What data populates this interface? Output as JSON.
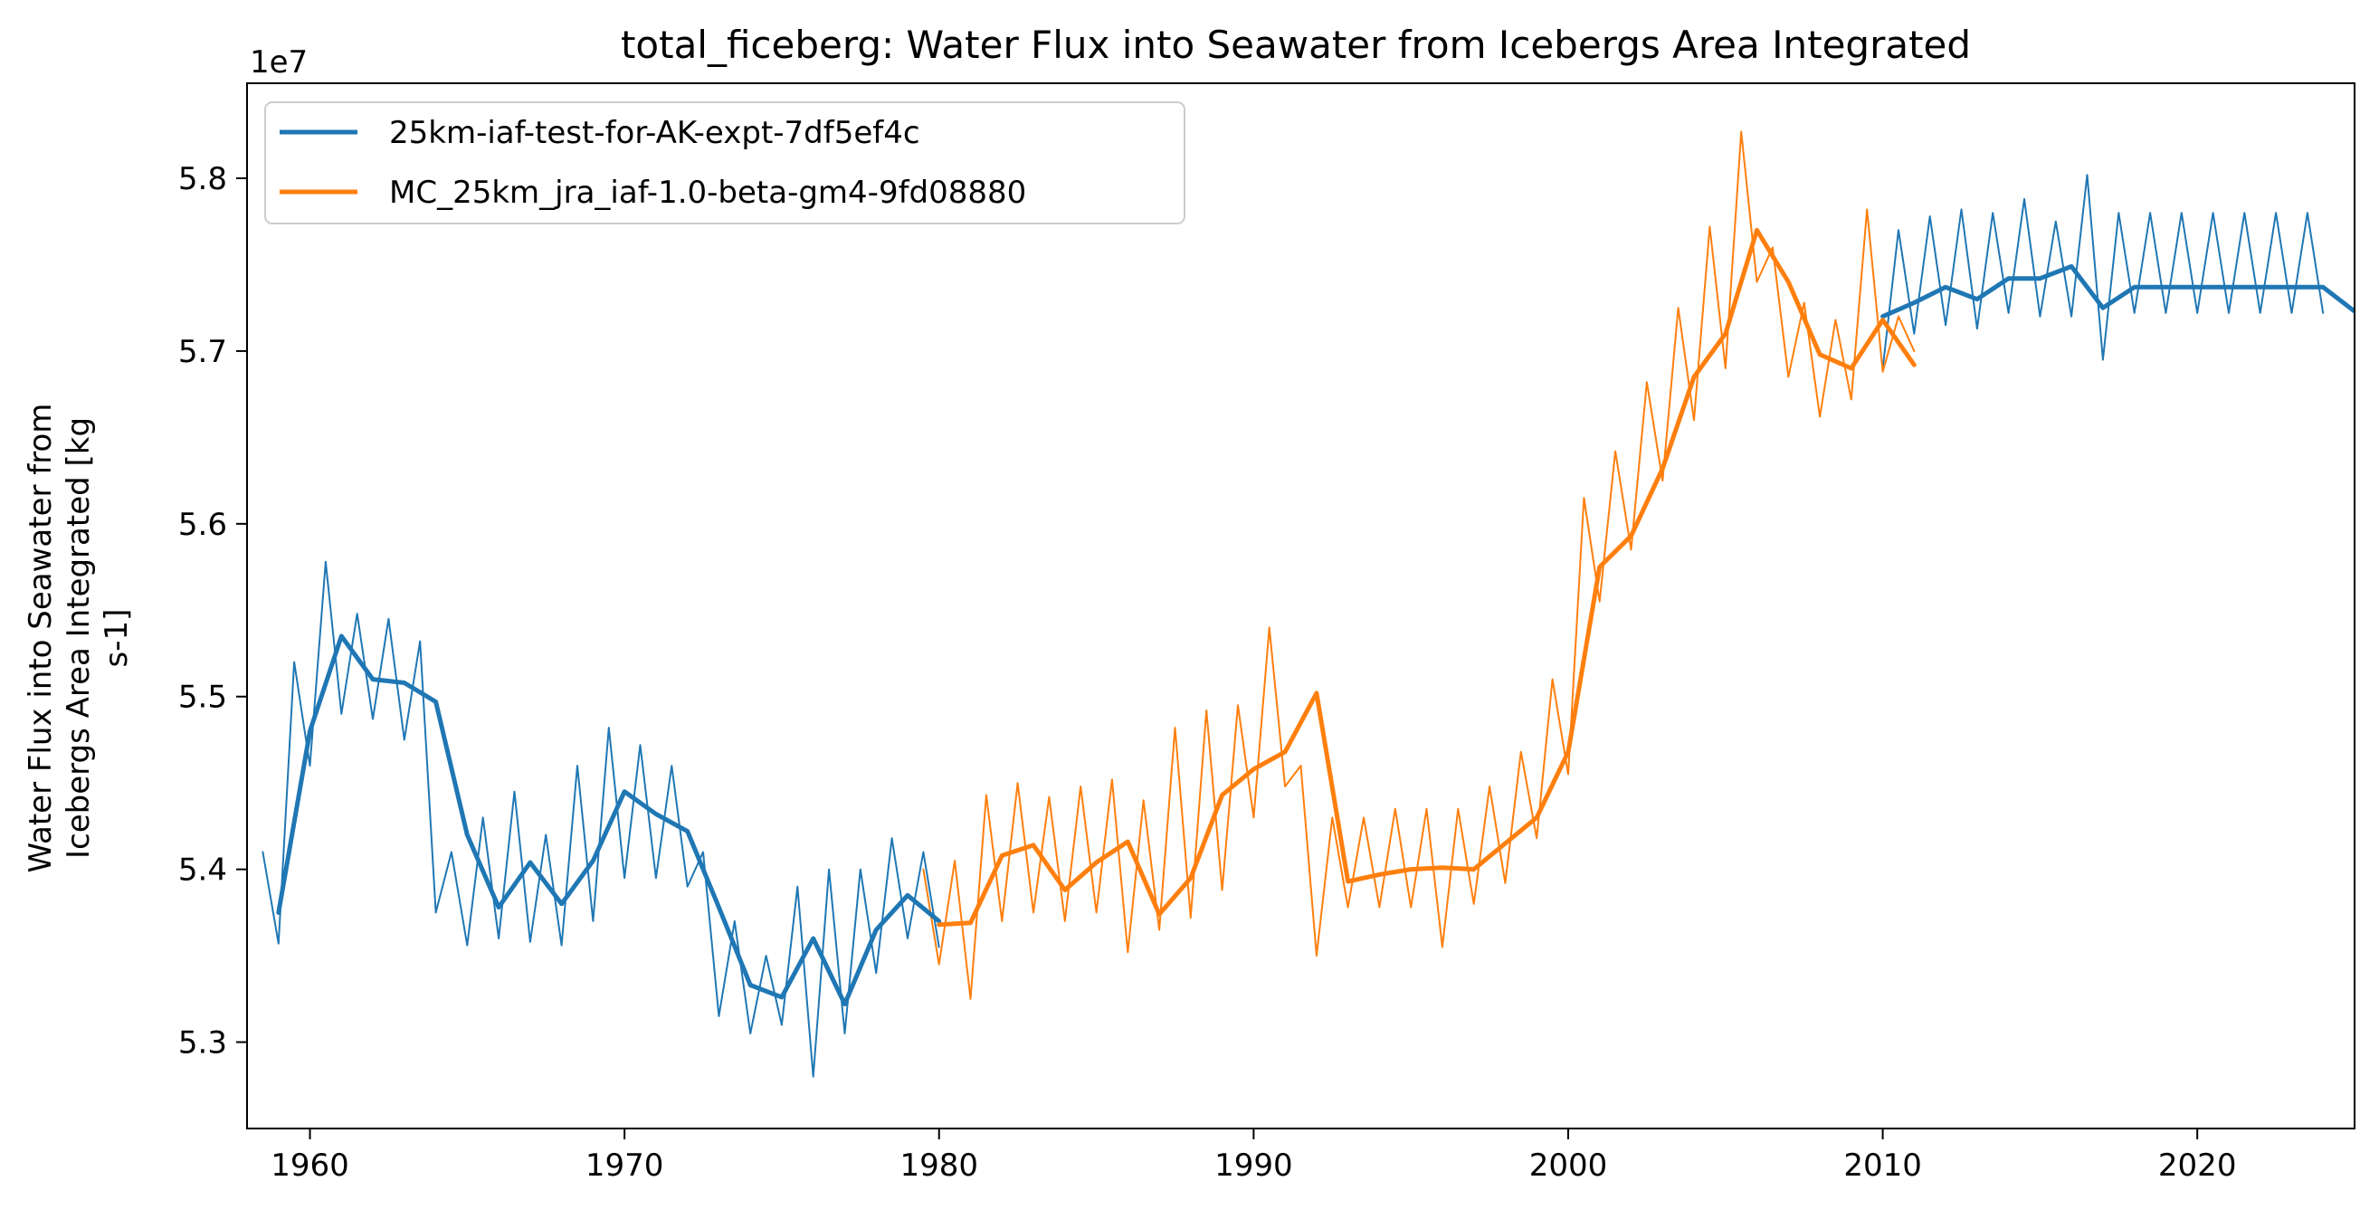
{
  "chart_data": {
    "type": "line",
    "title": "total_ficeberg: Water Flux into Seawater from Icebergs Area Integrated",
    "ylabel_lines": [
      "Water Flux into Seawater from",
      "Icebergs Area Integrated [kg",
      "s-1]"
    ],
    "xlabel": "",
    "y_multiplier": "1e7",
    "xlim": [
      1958,
      2025
    ],
    "ylim": [
      5.25,
      5.855
    ],
    "x_ticks": [
      1960,
      1970,
      1980,
      1990,
      2000,
      2010,
      2020
    ],
    "y_ticks": [
      5.3,
      5.4,
      5.5,
      5.6,
      5.7,
      5.8
    ],
    "y_tick_labels": [
      "5.3",
      "5.4",
      "5.5",
      "5.6",
      "5.7",
      "5.8"
    ],
    "legend_position": "top-left",
    "series": [
      {
        "name": "25km-iaf-test-for-AK-expt-7df5ef4c",
        "color": "#1f77b4",
        "annual": {
          "x": [
            1959,
            1960,
            1961,
            1962,
            1963,
            1964,
            1965,
            1966,
            1967,
            1968,
            1969,
            1970,
            1971,
            1972,
            1973,
            1974,
            1975,
            1976,
            1977,
            1978,
            1979,
            1980
          ],
          "y": [
            5.375,
            5.48,
            5.535,
            5.51,
            5.508,
            5.497,
            5.42,
            5.378,
            5.404,
            5.38,
            5.405,
            5.445,
            5.432,
            5.422,
            5.378,
            5.333,
            5.326,
            5.36,
            5.322,
            5.365,
            5.385,
            5.37
          ]
        },
        "annual_segment2": {
          "x": [
            2010,
            2011,
            2012,
            2013,
            2014,
            2015,
            2016,
            2017,
            2018,
            2019,
            2020,
            2021,
            2022,
            2023,
            2024,
            2025
          ],
          "y": [
            5.72,
            5.728,
            5.737,
            5.73,
            5.742,
            5.742,
            5.749,
            5.725,
            5.737,
            5.737,
            5.737,
            5.737,
            5.737,
            5.737,
            5.737,
            5.723
          ]
        },
        "monthly_peaks": {
          "x": [
            1958.5,
            1959.5,
            1960.5,
            1961.5,
            1962.5,
            1963.5,
            1964.5,
            1965.5,
            1966.5,
            1967.5,
            1968.5,
            1969.5,
            1970.5,
            1971.5,
            1972.5,
            1973.5,
            1974.5,
            1975.5,
            1976.5,
            1977.5,
            1978.5,
            1979.5
          ],
          "y": [
            5.41,
            5.52,
            5.578,
            5.548,
            5.545,
            5.532,
            5.41,
            5.43,
            5.445,
            5.42,
            5.46,
            5.482,
            5.472,
            5.46,
            5.41,
            5.37,
            5.35,
            5.39,
            5.4,
            5.4,
            5.418,
            5.41
          ]
        },
        "monthly_troughs": {
          "x": [
            1959,
            1960,
            1961,
            1962,
            1963,
            1964,
            1965,
            1966,
            1967,
            1968,
            1969,
            1970,
            1971,
            1972,
            1973,
            1974,
            1975,
            1976,
            1977,
            1978,
            1979,
            1980
          ],
          "y": [
            5.357,
            5.46,
            5.49,
            5.487,
            5.475,
            5.375,
            5.356,
            5.36,
            5.358,
            5.356,
            5.37,
            5.395,
            5.395,
            5.39,
            5.315,
            5.305,
            5.31,
            5.28,
            5.305,
            5.34,
            5.36,
            5.355
          ]
        },
        "monthly2_peaks": {
          "x": [
            2010.5,
            2011.5,
            2012.5,
            2013.5,
            2014.5,
            2015.5,
            2016.5,
            2017.5,
            2018.5,
            2019.5,
            2020.5,
            2021.5,
            2022.5,
            2023.5
          ],
          "y": [
            5.77,
            5.778,
            5.782,
            5.78,
            5.788,
            5.775,
            5.802,
            5.78,
            5.78,
            5.78,
            5.78,
            5.78,
            5.78,
            5.78
          ]
        },
        "monthly2_troughs": {
          "x": [
            2010,
            2011,
            2012,
            2013,
            2014,
            2015,
            2016,
            2017,
            2018,
            2019,
            2020,
            2021,
            2022,
            2023,
            2024
          ],
          "y": [
            5.69,
            5.71,
            5.715,
            5.713,
            5.722,
            5.72,
            5.72,
            5.695,
            5.722,
            5.722,
            5.722,
            5.722,
            5.722,
            5.722,
            5.722
          ]
        }
      },
      {
        "name": "MC_25km_jra_iaf-1.0-beta-gm4-9fd08880",
        "color": "#ff7f0e",
        "annual": {
          "x": [
            1980,
            1981,
            1982,
            1983,
            1984,
            1985,
            1986,
            1987,
            1988,
            1989,
            1990,
            1991,
            1992,
            1993,
            1994,
            1995,
            1996,
            1997,
            1998,
            1999,
            2000,
            2001,
            2002,
            2003,
            2004,
            2005,
            2006,
            2007,
            2008,
            2009,
            2010,
            2011
          ],
          "y": [
            5.368,
            5.369,
            5.408,
            5.414,
            5.388,
            5.404,
            5.416,
            5.374,
            5.395,
            5.443,
            5.458,
            5.468,
            5.502,
            5.393,
            5.397,
            5.4,
            5.401,
            5.4,
            5.415,
            5.43,
            5.468,
            5.575,
            5.593,
            5.632,
            5.685,
            5.71,
            5.77,
            5.74,
            5.698,
            5.69,
            5.718,
            5.692
          ]
        },
        "monthly_peaks": {
          "x": [
            1979.5,
            1980.5,
            1981.5,
            1982.5,
            1983.5,
            1984.5,
            1985.5,
            1986.5,
            1987.5,
            1988.5,
            1989.5,
            1990.5,
            1991.5,
            1992.5,
            1993.5,
            1994.5,
            1995.5,
            1996.5,
            1997.5,
            1998.5,
            1999.5,
            2000.5,
            2001.5,
            2002.5,
            2003.5,
            2004.5,
            2005.5,
            2006.5,
            2007.5,
            2008.5,
            2009.5,
            2010.5
          ],
          "y": [
            5.4,
            5.405,
            5.443,
            5.45,
            5.442,
            5.448,
            5.452,
            5.44,
            5.482,
            5.492,
            5.495,
            5.54,
            5.46,
            5.43,
            5.43,
            5.435,
            5.435,
            5.435,
            5.448,
            5.468,
            5.51,
            5.615,
            5.642,
            5.682,
            5.725,
            5.772,
            5.827,
            5.76,
            5.728,
            5.718,
            5.782,
            5.72
          ]
        },
        "monthly_troughs": {
          "x": [
            1980,
            1981,
            1982,
            1983,
            1984,
            1985,
            1986,
            1987,
            1988,
            1989,
            1990,
            1991,
            1992,
            1993,
            1994,
            1995,
            1996,
            1997,
            1998,
            1999,
            2000,
            2001,
            2002,
            2003,
            2004,
            2005,
            2006,
            2007,
            2008,
            2009,
            2010,
            2011
          ],
          "y": [
            5.345,
            5.325,
            5.37,
            5.375,
            5.37,
            5.375,
            5.352,
            5.365,
            5.372,
            5.388,
            5.43,
            5.448,
            5.35,
            5.378,
            5.378,
            5.378,
            5.355,
            5.38,
            5.392,
            5.418,
            5.455,
            5.555,
            5.585,
            5.625,
            5.66,
            5.69,
            5.74,
            5.685,
            5.662,
            5.672,
            5.688,
            5.7
          ]
        }
      }
    ]
  }
}
